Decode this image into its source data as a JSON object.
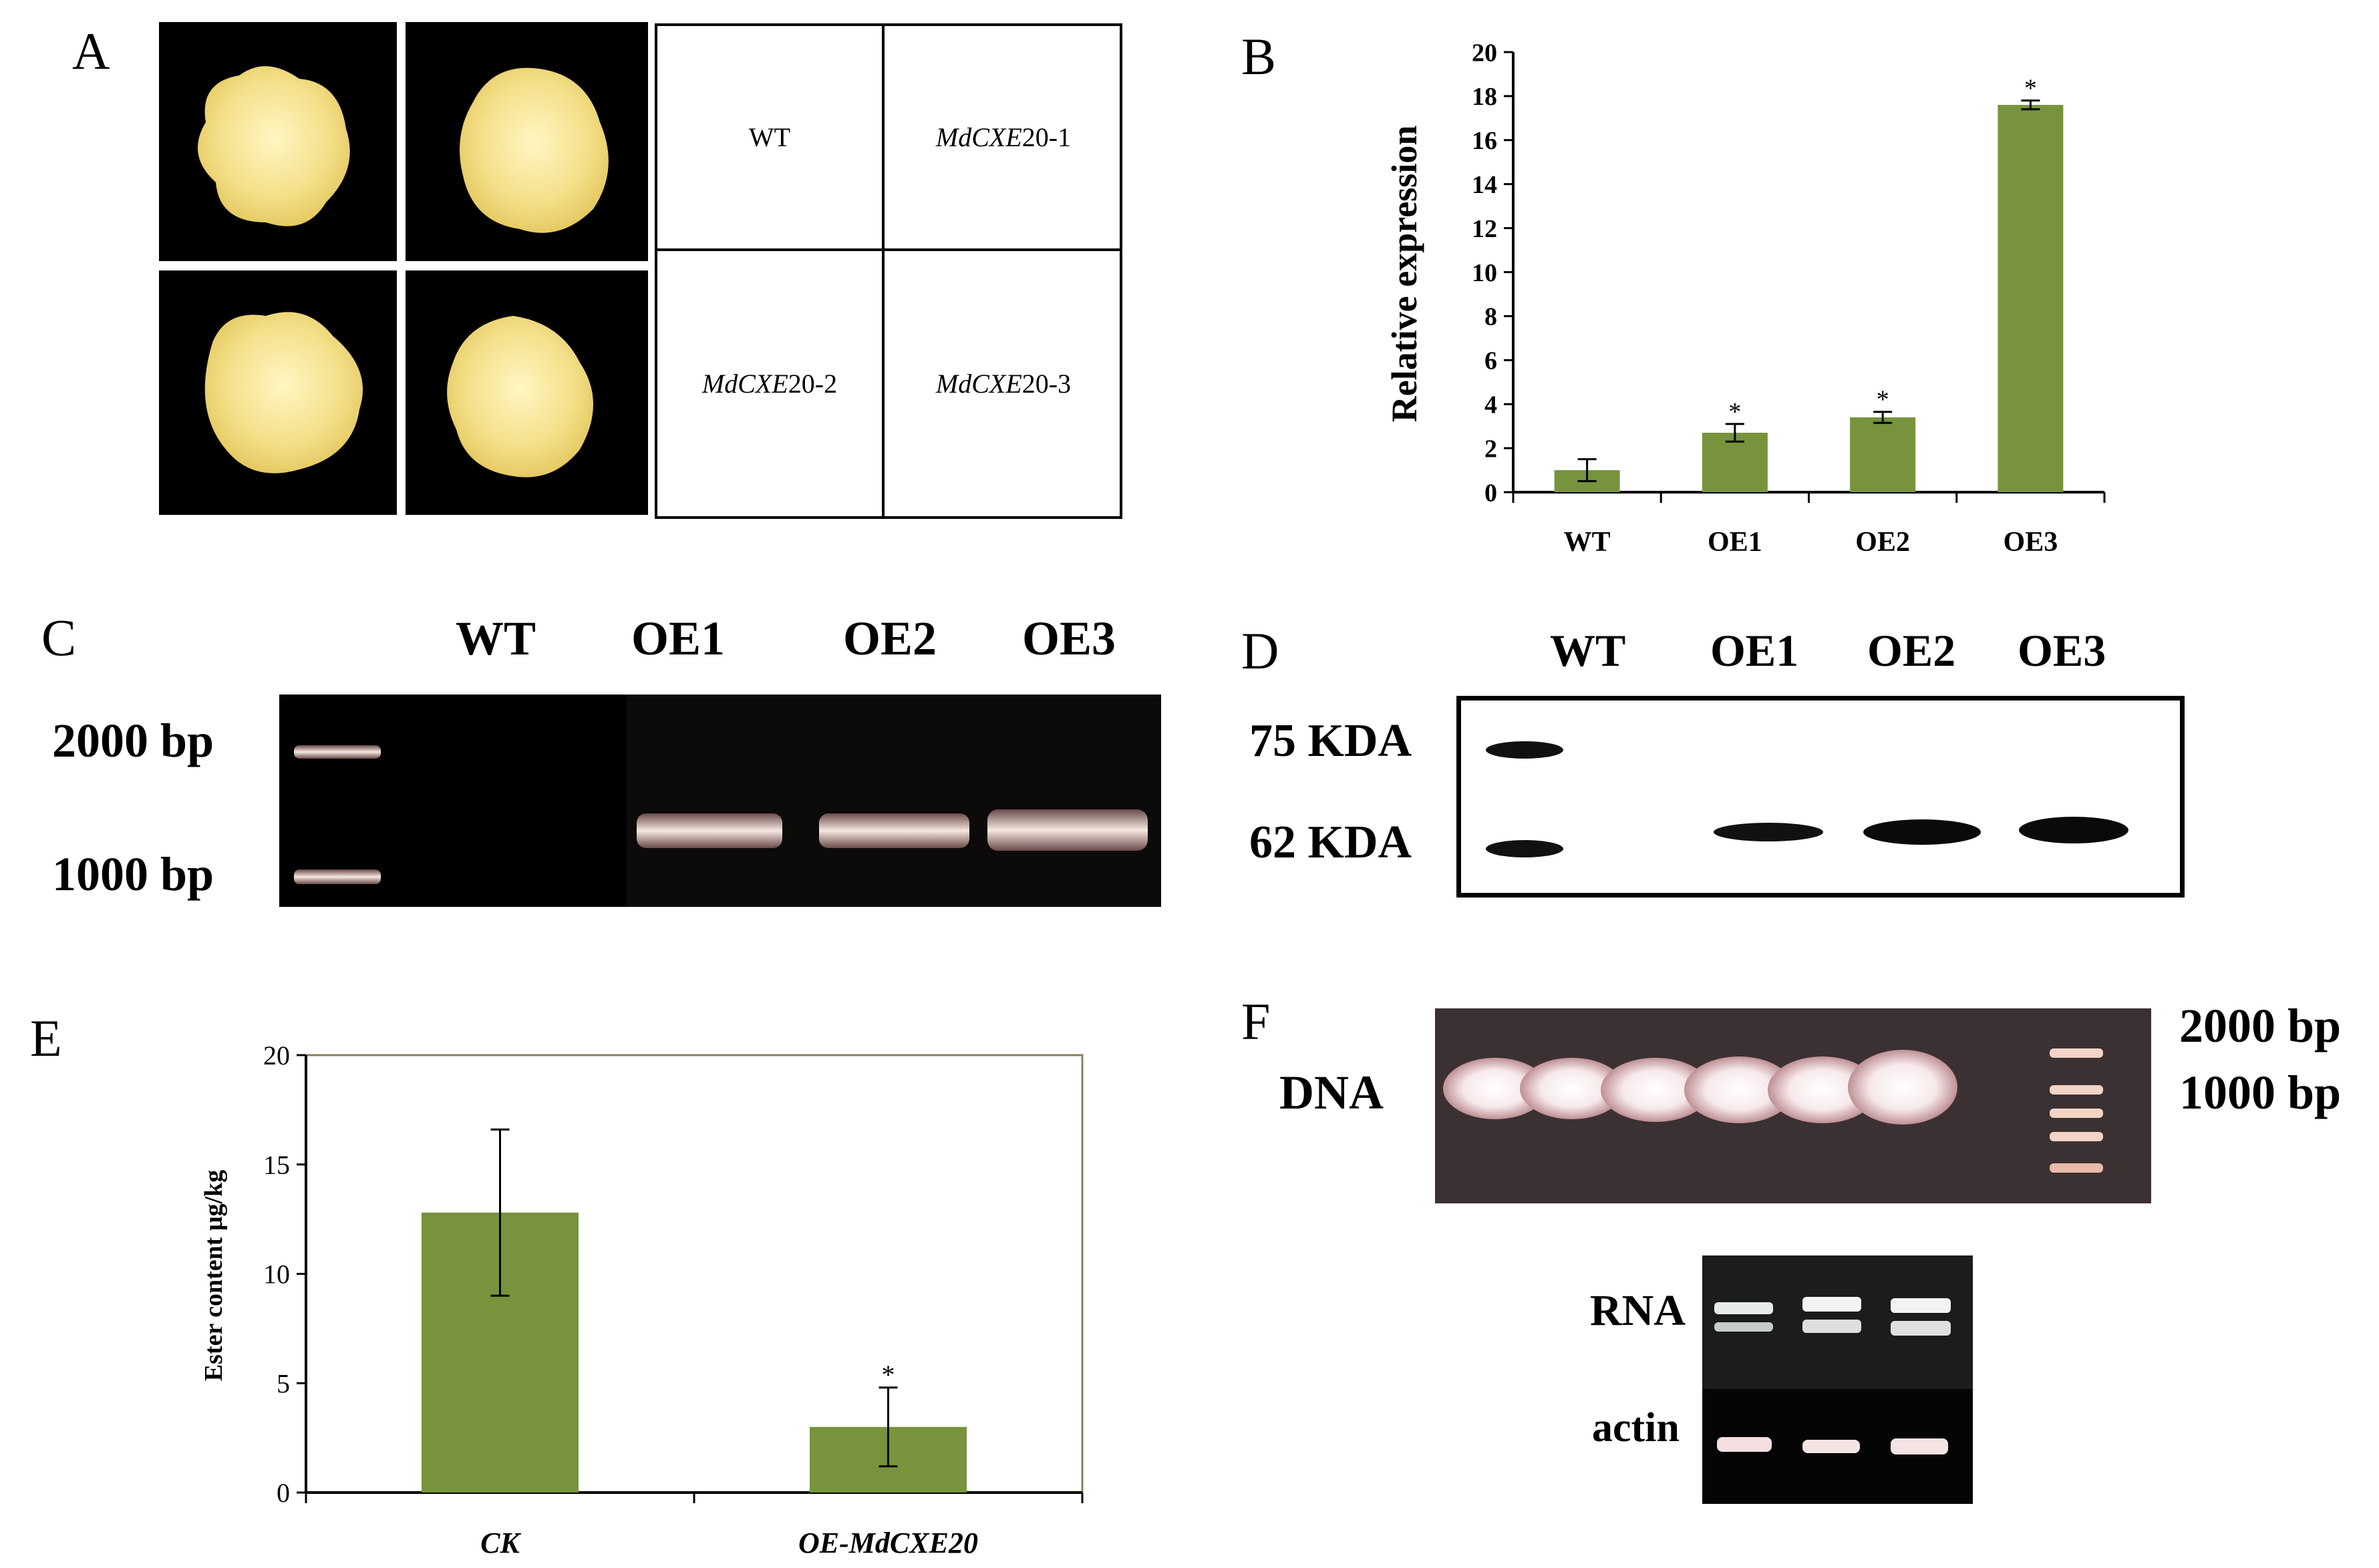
{
  "panels": {
    "A": {
      "letter": "A",
      "grid": [
        "WT",
        "MdCXE20-1",
        "MdCXE20-2",
        "MdCXE20-3"
      ],
      "grid_italic": [
        "",
        "MdCXE",
        "MdCXE",
        "MdCXE"
      ],
      "grid_suffix": [
        "WT",
        "20-1",
        "20-2",
        "20-3"
      ]
    },
    "B": {
      "letter": "B"
    },
    "C": {
      "letter": "C",
      "lanes": [
        "WT",
        "OE1",
        "OE2",
        "OE3"
      ],
      "markers": [
        "2000 bp",
        "1000 bp"
      ]
    },
    "D": {
      "letter": "D",
      "lanes": [
        "WT",
        "OE1",
        "OE2",
        "OE3"
      ],
      "markers": [
        "75 KDA",
        "62 KDA"
      ]
    },
    "E": {
      "letter": "E"
    },
    "F": {
      "letter": "F",
      "labels": {
        "dna": "DNA",
        "rna": "RNA",
        "actin": "actin"
      },
      "markers": [
        "2000 bp",
        "1000 bp"
      ]
    }
  },
  "chart_data": [
    {
      "id": "B",
      "type": "bar",
      "categories": [
        "WT",
        "OE1",
        "OE2",
        "OE3"
      ],
      "values": [
        1.0,
        2.7,
        3.4,
        17.6
      ],
      "errors": [
        0.5,
        0.4,
        0.25,
        0.2
      ],
      "significance": [
        "",
        "*",
        "*",
        "*"
      ],
      "ylabel": "Relative expression",
      "ylim": [
        0,
        20
      ],
      "yticks": [
        0,
        2,
        4,
        6,
        8,
        10,
        12,
        14,
        16,
        18,
        20
      ],
      "bar_color": "#77933c",
      "grid": false
    },
    {
      "id": "E",
      "type": "bar",
      "categories": [
        "CK",
        "OE-MdCXE20"
      ],
      "values": [
        12.8,
        3.0
      ],
      "errors": [
        3.8,
        1.8
      ],
      "significance": [
        "",
        "*"
      ],
      "ylabel": "Ester content μg/kg",
      "ylim": [
        0,
        20
      ],
      "yticks": [
        0,
        5,
        10,
        15,
        20
      ],
      "bar_color": "#77933c",
      "frame_color": "#8a8060",
      "grid": false
    }
  ]
}
